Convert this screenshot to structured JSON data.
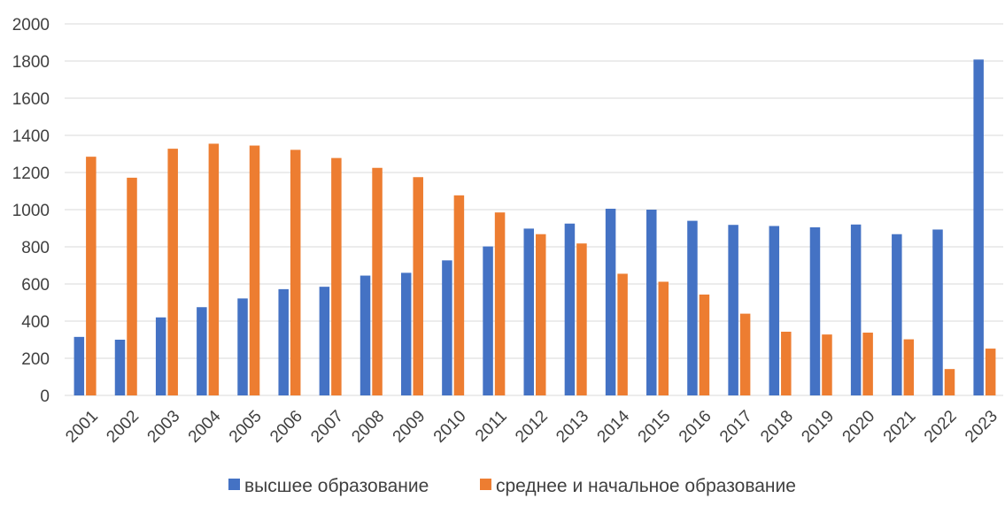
{
  "chart_data": {
    "type": "bar",
    "title": "",
    "xlabel": "",
    "ylabel": "",
    "ylim": [
      0,
      2000
    ],
    "yticks": [
      0,
      200,
      400,
      600,
      800,
      1000,
      1200,
      1400,
      1600,
      1800,
      2000
    ],
    "grid": true,
    "legend_position": "bottom",
    "categories": [
      "2001",
      "2002",
      "2003",
      "2004",
      "2005",
      "2006",
      "2007",
      "2008",
      "2009",
      "2010",
      "2011",
      "2012",
      "2013",
      "2014",
      "2015",
      "2016",
      "2017",
      "2018",
      "2019",
      "2020",
      "2021",
      "2022",
      "2023"
    ],
    "series": [
      {
        "name": "высшее образование",
        "color": "#4472c4",
        "values": [
          315,
          300,
          420,
          475,
          522,
          572,
          585,
          645,
          660,
          727,
          802,
          898,
          925,
          1005,
          1000,
          940,
          918,
          912,
          905,
          920,
          868,
          893,
          1808
        ]
      },
      {
        "name": "среднее и начальное образование",
        "color": "#ed7d31",
        "values": [
          1285,
          1172,
          1328,
          1355,
          1345,
          1322,
          1278,
          1225,
          1175,
          1077,
          985,
          868,
          818,
          655,
          612,
          543,
          440,
          343,
          328,
          338,
          302,
          142,
          252
        ]
      }
    ]
  }
}
